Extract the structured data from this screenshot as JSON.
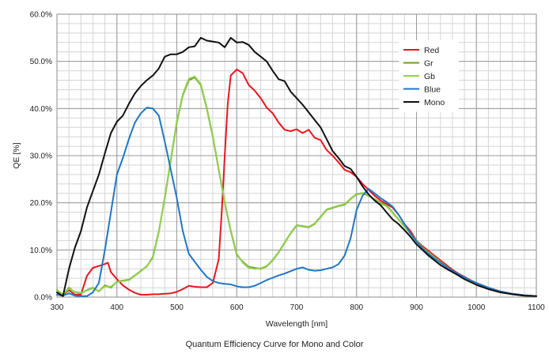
{
  "caption": "Quantum Efficiency Curve for Mono and Color",
  "chart_data": {
    "type": "line",
    "title": "",
    "xlabel": "Wavelength [nm]",
    "ylabel": "QE [%]",
    "xlim": [
      300,
      1100
    ],
    "ylim": [
      0,
      60
    ],
    "x_ticks": [
      300,
      400,
      500,
      600,
      700,
      800,
      900,
      1000,
      1100
    ],
    "y_ticks": [
      0,
      10,
      20,
      30,
      40,
      50,
      60
    ],
    "y_tick_labels": [
      "0.0%",
      "10.0%",
      "20.0%",
      "30.0%",
      "40.0%",
      "50.0%",
      "60.0%"
    ],
    "grid": true,
    "legend_position": "top-right",
    "series": [
      {
        "name": "Red",
        "color": "#e8161e",
        "x": [
          300,
          310,
          320,
          330,
          340,
          350,
          360,
          370,
          380,
          385,
          390,
          400,
          410,
          420,
          430,
          440,
          450,
          460,
          470,
          480,
          490,
          500,
          510,
          520,
          530,
          540,
          550,
          560,
          570,
          575,
          580,
          585,
          590,
          600,
          610,
          620,
          630,
          640,
          650,
          660,
          670,
          680,
          690,
          700,
          710,
          720,
          730,
          740,
          750,
          760,
          770,
          780,
          790,
          800,
          810,
          820,
          830,
          840,
          850,
          860,
          870,
          880,
          890,
          900,
          910,
          920,
          930,
          940,
          950,
          960,
          970,
          980,
          990,
          1000,
          1020,
          1040,
          1060,
          1080,
          1100
        ],
        "values": [
          1.5,
          0.5,
          1.5,
          0.5,
          0.5,
          4.5,
          6.2,
          6.6,
          7.0,
          7.3,
          5.3,
          3.8,
          2.5,
          1.6,
          0.9,
          0.5,
          0.5,
          0.6,
          0.6,
          0.7,
          0.8,
          1.1,
          1.7,
          2.4,
          2.2,
          2.1,
          2.1,
          3.0,
          8.0,
          18.0,
          30.0,
          41.0,
          47.0,
          48.3,
          47.5,
          45.0,
          43.8,
          42.2,
          40.2,
          39.0,
          37.0,
          35.5,
          35.2,
          35.6,
          34.8,
          35.5,
          33.8,
          33.3,
          31.2,
          30.0,
          28.6,
          27.0,
          26.5,
          25.5,
          24.0,
          22.8,
          21.5,
          20.5,
          19.8,
          19.0,
          17.5,
          15.5,
          14.0,
          12.0,
          10.8,
          9.8,
          8.8,
          7.8,
          6.8,
          5.8,
          5.0,
          4.3,
          3.6,
          3.0,
          2.0,
          1.2,
          0.7,
          0.4,
          0.2
        ]
      },
      {
        "name": "Gr",
        "color": "#6f9b2e",
        "x": [
          300,
          310,
          320,
          330,
          340,
          350,
          360,
          370,
          380,
          390,
          400,
          410,
          420,
          430,
          440,
          450,
          460,
          470,
          480,
          490,
          500,
          510,
          520,
          530,
          540,
          550,
          560,
          570,
          580,
          590,
          600,
          610,
          620,
          630,
          640,
          650,
          660,
          670,
          680,
          690,
          700,
          710,
          720,
          730,
          740,
          750,
          760,
          770,
          780,
          790,
          800,
          810,
          820,
          830,
          840,
          850,
          860,
          870,
          880,
          890,
          900,
          910,
          920,
          930,
          940,
          950,
          960,
          970,
          980,
          990,
          1000,
          1020,
          1040,
          1060,
          1080,
          1100
        ],
        "values": [
          1.5,
          0.5,
          2.0,
          1.0,
          0.8,
          1.5,
          2.0,
          1.2,
          2.5,
          2.0,
          3.3,
          3.5,
          3.7,
          4.6,
          5.6,
          6.5,
          8.5,
          14.0,
          21.0,
          29.0,
          37.0,
          42.8,
          46.0,
          46.6,
          45.0,
          40.0,
          34.0,
          27.0,
          20.0,
          14.0,
          9.0,
          7.5,
          6.4,
          6.2,
          6.0,
          6.5,
          7.8,
          9.5,
          11.5,
          13.5,
          15.2,
          15.0,
          14.8,
          15.5,
          17.0,
          18.5,
          18.9,
          19.3,
          19.6,
          20.8,
          21.8,
          22.0,
          21.5,
          20.8,
          20.0,
          19.5,
          18.0,
          16.5,
          15.0,
          13.5,
          12.0,
          10.5,
          9.5,
          8.5,
          7.5,
          6.5,
          5.6,
          4.8,
          4.0,
          3.4,
          2.8,
          1.8,
          1.1,
          0.6,
          0.3,
          0.2
        ]
      },
      {
        "name": "Gb",
        "color": "#92d050",
        "x": [
          300,
          310,
          320,
          330,
          340,
          350,
          360,
          370,
          380,
          390,
          400,
          410,
          420,
          430,
          440,
          450,
          460,
          470,
          480,
          490,
          500,
          510,
          520,
          530,
          540,
          550,
          560,
          570,
          580,
          590,
          600,
          610,
          620,
          630,
          640,
          650,
          660,
          670,
          680,
          690,
          700,
          710,
          720,
          730,
          740,
          750,
          760,
          770,
          780,
          790,
          800,
          810,
          820,
          830,
          840,
          850,
          860,
          870,
          880,
          890,
          900,
          910,
          920,
          930,
          940,
          950,
          960,
          970,
          980,
          990,
          1000,
          1020,
          1040,
          1060,
          1080,
          1100
        ],
        "values": [
          1.4,
          0.6,
          1.8,
          1.1,
          0.9,
          1.4,
          1.9,
          1.3,
          2.3,
          2.2,
          3.2,
          3.4,
          3.6,
          4.5,
          5.5,
          6.6,
          8.3,
          13.8,
          21.2,
          29.2,
          37.3,
          43.0,
          46.3,
          46.8,
          45.2,
          40.2,
          34.2,
          27.2,
          20.2,
          14.2,
          9.2,
          7.3,
          6.2,
          6.0,
          6.1,
          6.6,
          7.9,
          9.6,
          11.6,
          13.6,
          15.3,
          15.1,
          14.9,
          15.6,
          17.1,
          18.6,
          19.0,
          19.4,
          19.7,
          20.9,
          21.9,
          22.1,
          21.6,
          20.7,
          19.8,
          19.3,
          17.9,
          16.4,
          14.9,
          13.4,
          11.9,
          10.4,
          9.4,
          8.4,
          7.4,
          6.4,
          5.5,
          4.7,
          3.9,
          3.3,
          2.7,
          1.7,
          1.0,
          0.6,
          0.3,
          0.2
        ]
      },
      {
        "name": "Blue",
        "color": "#1f77c4",
        "x": [
          300,
          310,
          320,
          330,
          340,
          350,
          360,
          370,
          380,
          390,
          400,
          410,
          420,
          430,
          440,
          450,
          460,
          470,
          480,
          490,
          500,
          510,
          520,
          530,
          540,
          550,
          560,
          570,
          580,
          590,
          600,
          610,
          620,
          630,
          640,
          650,
          660,
          670,
          680,
          690,
          700,
          710,
          720,
          730,
          740,
          750,
          760,
          770,
          780,
          790,
          800,
          810,
          820,
          830,
          840,
          850,
          860,
          870,
          880,
          890,
          900,
          910,
          920,
          930,
          940,
          950,
          960,
          970,
          980,
          990,
          1000,
          1020,
          1040,
          1060,
          1080,
          1100
        ],
        "values": [
          0.5,
          0.3,
          0.8,
          0.3,
          0.2,
          0.2,
          1.0,
          3.0,
          10.0,
          18.0,
          26.0,
          29.5,
          33.5,
          37.0,
          39.0,
          40.2,
          40.0,
          38.5,
          33.0,
          27.0,
          21.0,
          14.0,
          9.2,
          7.5,
          5.8,
          4.3,
          3.4,
          3.0,
          2.8,
          2.7,
          2.3,
          2.1,
          2.1,
          2.4,
          3.0,
          3.6,
          4.1,
          4.6,
          5.0,
          5.5,
          6.0,
          6.3,
          5.8,
          5.6,
          5.7,
          6.0,
          6.3,
          7.0,
          8.8,
          12.5,
          18.5,
          21.5,
          23.0,
          22.0,
          21.0,
          20.2,
          19.2,
          17.5,
          15.5,
          13.5,
          11.8,
          10.3,
          9.2,
          8.2,
          7.3,
          6.4,
          5.6,
          4.9,
          4.2,
          3.6,
          3.0,
          2.0,
          1.2,
          0.7,
          0.4,
          0.2
        ]
      },
      {
        "name": "Mono",
        "color": "#111111",
        "x": [
          300,
          310,
          320,
          330,
          340,
          350,
          360,
          370,
          380,
          390,
          400,
          410,
          420,
          430,
          440,
          450,
          460,
          470,
          480,
          490,
          500,
          510,
          520,
          530,
          540,
          550,
          560,
          570,
          580,
          590,
          600,
          610,
          620,
          630,
          640,
          650,
          660,
          670,
          680,
          690,
          700,
          710,
          720,
          730,
          740,
          750,
          760,
          770,
          780,
          790,
          800,
          810,
          820,
          830,
          840,
          850,
          860,
          870,
          880,
          890,
          900,
          910,
          920,
          930,
          940,
          950,
          960,
          970,
          980,
          990,
          1000,
          1020,
          1040,
          1060,
          1080,
          1100
        ],
        "values": [
          1.0,
          0.2,
          6.0,
          10.5,
          14.0,
          19.0,
          22.5,
          26.0,
          30.5,
          34.8,
          37.2,
          38.5,
          41.0,
          43.2,
          44.8,
          46.0,
          47.0,
          48.5,
          51.0,
          51.5,
          51.5,
          52.0,
          53.0,
          53.2,
          55.0,
          54.4,
          54.2,
          54.0,
          53.0,
          55.0,
          54.0,
          54.1,
          53.5,
          52.0,
          51.0,
          50.0,
          48.0,
          46.2,
          45.8,
          43.6,
          42.2,
          40.8,
          39.2,
          37.6,
          36.0,
          33.5,
          31.0,
          29.5,
          27.8,
          27.2,
          25.5,
          23.5,
          21.8,
          20.5,
          19.5,
          18.0,
          16.5,
          15.5,
          14.2,
          12.8,
          11.2,
          10.0,
          8.8,
          7.8,
          6.8,
          6.0,
          5.3,
          4.6,
          3.8,
          3.2,
          2.6,
          1.7,
          1.0,
          0.6,
          0.3,
          0.2
        ]
      }
    ]
  }
}
